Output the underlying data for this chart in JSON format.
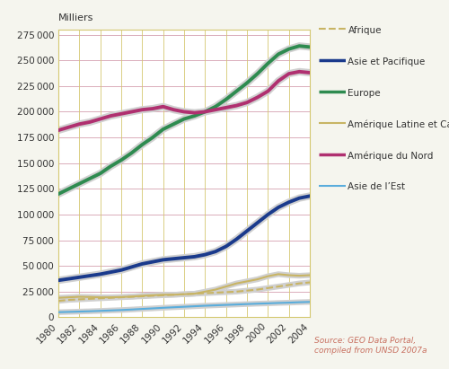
{
  "years": [
    1980,
    1981,
    1982,
    1983,
    1984,
    1985,
    1986,
    1987,
    1988,
    1989,
    1990,
    1991,
    1992,
    1993,
    1994,
    1995,
    1996,
    1997,
    1998,
    1999,
    2000,
    2001,
    2002,
    2003,
    2004
  ],
  "Afrique": [
    16000,
    17000,
    17500,
    18000,
    18500,
    19000,
    19500,
    20000,
    20500,
    21000,
    21500,
    22000,
    22500,
    23000,
    23500,
    24000,
    24500,
    25000,
    26000,
    27000,
    28500,
    30000,
    31500,
    33000,
    34000
  ],
  "Asie_et_Pacifique": [
    36000,
    37500,
    39000,
    40500,
    42000,
    44000,
    46000,
    49000,
    52000,
    54000,
    56000,
    57000,
    58000,
    59000,
    61000,
    64000,
    69000,
    76000,
    84000,
    92000,
    100000,
    107000,
    112000,
    116000,
    118000
  ],
  "Europe": [
    120000,
    125000,
    130000,
    135000,
    140000,
    147000,
    153000,
    160000,
    168000,
    175000,
    183000,
    188000,
    193000,
    196000,
    200000,
    205000,
    212000,
    220000,
    228000,
    237000,
    247000,
    256000,
    261000,
    264000,
    263000
  ],
  "Amerique_Latine": [
    19000,
    19500,
    20000,
    19800,
    19500,
    19500,
    19800,
    20200,
    21000,
    21500,
    22000,
    22000,
    22500,
    23000,
    25000,
    27000,
    30000,
    33000,
    35000,
    37000,
    40000,
    42000,
    41000,
    40500,
    41000
  ],
  "Amerique_du_Nord": [
    182000,
    185000,
    188000,
    190000,
    193000,
    196000,
    198000,
    200000,
    202000,
    203000,
    205000,
    202000,
    200000,
    199000,
    200000,
    202000,
    204000,
    206000,
    209000,
    214000,
    220000,
    230000,
    237000,
    239000,
    238000
  ],
  "Asie_de_lEst": [
    5000,
    5300,
    5600,
    5900,
    6300,
    6700,
    7100,
    7600,
    8200,
    8700,
    9300,
    9800,
    10300,
    10800,
    11300,
    11700,
    12100,
    12500,
    12900,
    13300,
    13600,
    14000,
    14300,
    14700,
    15000
  ],
  "colors": {
    "Afrique": "#c8b464",
    "Asie_et_Pacifique": "#1a3a8c",
    "Europe": "#2e8b50",
    "Amerique_Latine": "#c8b464",
    "Amerique_du_Nord": "#b03070",
    "Asie_de_lEst": "#5aaddc"
  },
  "ylabel": "Milliers",
  "ylim": [
    0,
    280000
  ],
  "yticks": [
    0,
    25000,
    50000,
    75000,
    100000,
    125000,
    150000,
    175000,
    200000,
    225000,
    250000,
    275000
  ],
  "bg_color": "#f5f5ee",
  "plot_bg": "#ffffff",
  "grid_color_h": "#d4a0b0",
  "grid_color_v": "#d4c870",
  "source_text": "Source: GEO Data Portal,\ncompiled from UNSD 2007a",
  "legend_labels": [
    "Afrique",
    "Asie et Pacifique",
    "Europe",
    "Amérique Latine et Caraïbes",
    "Amérique du Nord",
    "Asie de l’Est"
  ],
  "figsize": [
    5.0,
    4.11
  ],
  "dpi": 100
}
